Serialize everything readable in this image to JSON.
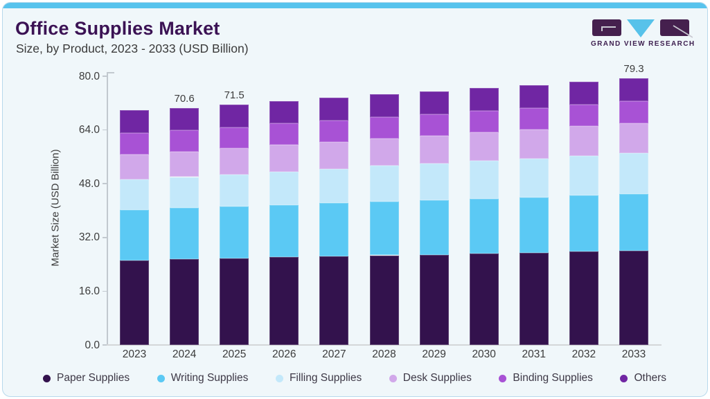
{
  "header": {
    "title": "Office Supplies Market",
    "subtitle": "Size, by Product, 2023 - 2033 (USD Billion)",
    "brand_name": "GRAND VIEW RESEARCH"
  },
  "colors": {
    "accent_bar": "#58c3ed",
    "card_background": "#f0f7fa",
    "card_border": "#b7d9ec",
    "title": "#3b1254",
    "axis": "#c2c9cf",
    "brand_dark_purple": "#45204e",
    "brand_light_blue": "#57c2ea"
  },
  "chart_data": {
    "type": "bar",
    "stacked": true,
    "title": "Office Supplies Market",
    "subtitle": "Size, by Product, 2023 - 2033 (USD Billion)",
    "xlabel": "",
    "ylabel": "Market Size (USD Billion)",
    "ylim": [
      0,
      80
    ],
    "grid": false,
    "legend_position": "bottom",
    "yticks": [
      0,
      16,
      32,
      48,
      64,
      80
    ],
    "ytick_labels": [
      "0.0",
      "16.0",
      "32.0",
      "48.0",
      "64.0",
      "80.0"
    ],
    "categories": [
      "2023",
      "2024",
      "2025",
      "2026",
      "2027",
      "2028",
      "2029",
      "2030",
      "2031",
      "2032",
      "2033"
    ],
    "series": [
      {
        "name": "Paper Supplies",
        "color": "#33124d",
        "values": [
          25.2,
          25.5,
          25.8,
          26.1,
          26.4,
          26.7,
          26.9,
          27.2,
          27.5,
          27.8,
          28.1
        ]
      },
      {
        "name": "Writing Supplies",
        "color": "#5bc9f4",
        "values": [
          15.1,
          15.3,
          15.4,
          15.6,
          15.8,
          16.0,
          16.2,
          16.4,
          16.5,
          16.7,
          16.9
        ]
      },
      {
        "name": "Filling Supplies",
        "color": "#c3e8fa",
        "values": [
          9.0,
          9.2,
          9.5,
          9.9,
          10.2,
          10.6,
          10.9,
          11.2,
          11.5,
          11.8,
          12.1
        ]
      },
      {
        "name": "Desk Supplies",
        "color": "#d1a8ea",
        "values": [
          7.5,
          7.6,
          7.8,
          7.9,
          8.1,
          8.2,
          8.3,
          8.5,
          8.6,
          8.8,
          8.9
        ]
      },
      {
        "name": "Binding Supplies",
        "color": "#a852d5",
        "values": [
          6.3,
          6.3,
          6.3,
          6.4,
          6.4,
          6.4,
          6.4,
          6.4,
          6.5,
          6.5,
          6.5
        ]
      },
      {
        "name": "Others",
        "color": "#7026a3",
        "values": [
          6.7,
          6.7,
          6.7,
          6.7,
          6.7,
          6.8,
          6.8,
          6.8,
          6.8,
          6.8,
          6.8
        ]
      }
    ],
    "totals": [
      69.8,
      70.6,
      71.5,
      72.6,
      73.6,
      74.7,
      75.5,
      76.5,
      77.4,
      78.4,
      79.3
    ],
    "bar_labels": {
      "2024": "70.6",
      "2025": "71.5",
      "2033": "79.3"
    }
  }
}
